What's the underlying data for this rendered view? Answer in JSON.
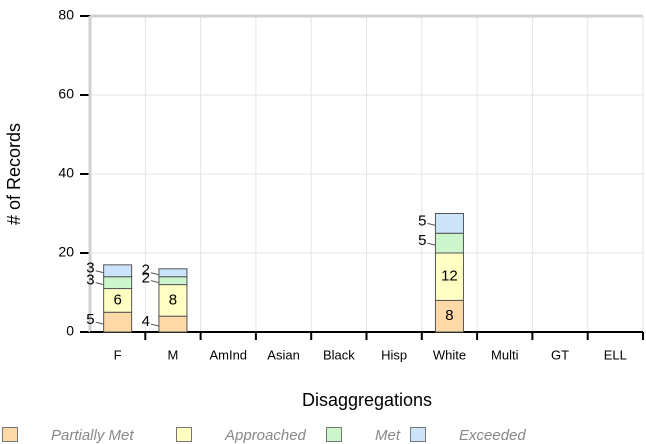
{
  "chart_data": {
    "type": "bar",
    "stacked": true,
    "x_label": "Disaggregations",
    "y_label": "# of Records",
    "categories": [
      "F",
      "M",
      "AmInd",
      "Asian",
      "Black",
      "Hisp",
      "White",
      "Multi",
      "GT",
      "ELL"
    ],
    "series": [
      {
        "name": "Partially Met",
        "color": "#fdd9a8",
        "values": [
          5,
          4,
          null,
          null,
          null,
          null,
          8,
          null,
          null,
          null
        ]
      },
      {
        "name": "Approached",
        "color": "#ffffc4",
        "values": [
          6,
          8,
          null,
          null,
          null,
          null,
          12,
          null,
          null,
          null
        ]
      },
      {
        "name": "Met",
        "color": "#ccf5cc",
        "values": [
          3,
          2,
          null,
          null,
          null,
          null,
          5,
          null,
          null,
          null
        ]
      },
      {
        "name": "Exceeded",
        "color": "#cce4fa",
        "values": [
          3,
          2,
          null,
          null,
          null,
          null,
          5,
          null,
          null,
          null
        ]
      }
    ],
    "ylim": [
      0,
      80
    ],
    "yticks": [
      0,
      20,
      40,
      60,
      80
    ],
    "grid": true,
    "legend": "bottom"
  }
}
